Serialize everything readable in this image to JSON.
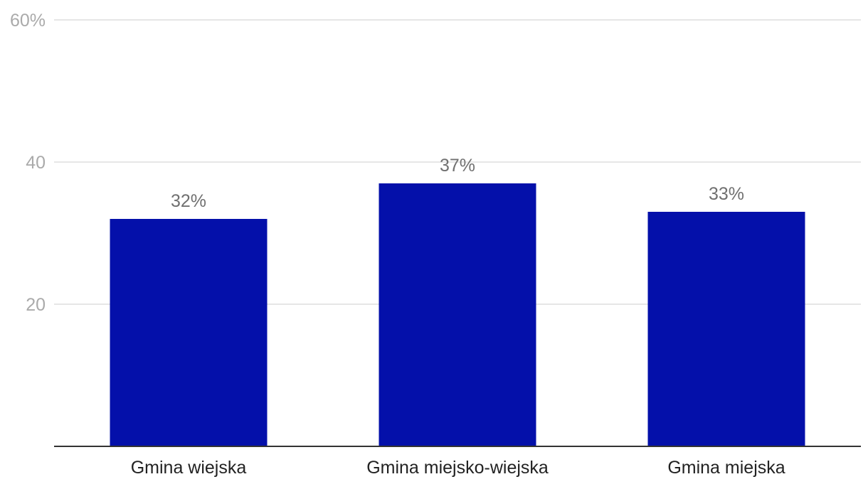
{
  "chart_data": {
    "type": "bar",
    "categories": [
      "Gmina wiejska",
      "Gmina miejsko-wiejska",
      "Gmina miejska"
    ],
    "values": [
      32,
      37,
      33
    ],
    "value_labels": [
      "32%",
      "37%",
      "33%"
    ],
    "y_ticks": [
      20,
      40,
      60
    ],
    "y_tick_labels": [
      "20",
      "40",
      "60%"
    ],
    "ylim": [
      0,
      60
    ],
    "title": "",
    "xlabel": "",
    "ylabel": "",
    "grid": true,
    "legend": "none",
    "bar_color": "#0410AA"
  }
}
